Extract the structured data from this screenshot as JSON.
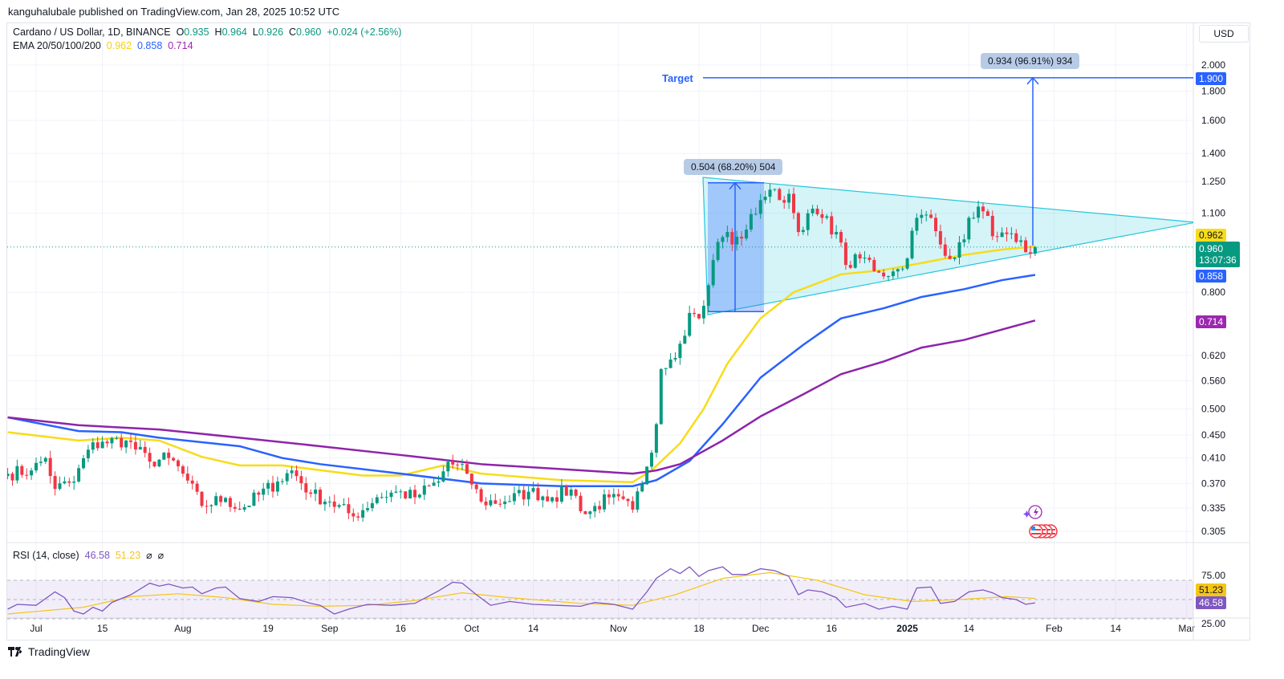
{
  "header": {
    "publisher": "kanguhalubale published on TradingView.com, Jan 28, 2025 10:52 UTC",
    "symbol": "Cardano / US Dollar, 1D, BINANCE",
    "o_label": "O",
    "o": "0.935",
    "h_label": "H",
    "h": "0.964",
    "l_label": "L",
    "l": "0.926",
    "c_label": "C",
    "c": "0.960",
    "change": "+0.024 (+2.56%)",
    "ema_label": "EMA 20/50/100/200",
    "ema20": "0.962",
    "ema50": "0.858",
    "ema200": "0.714",
    "currency": "USD"
  },
  "rsi_legend": {
    "label": "RSI (14, close)",
    "value": "46.58",
    "ma": "51.23",
    "icon1": "⌀",
    "icon2": "⌀"
  },
  "annotations": {
    "target_label": "Target",
    "target_price": "1.900",
    "target_measure": "0.934 (96.91%) 934",
    "flagpole_measure": "0.504 (68.20%) 504",
    "current_price": "0.960",
    "countdown": "13:07:36"
  },
  "footer": {
    "brand": "TradingView"
  },
  "colors": {
    "up": "#089981",
    "down": "#f23645",
    "ema20": "#f7dc1a",
    "ema50": "#2962ff",
    "ema200": "#8e24aa",
    "rsi": "#7e57c2",
    "rsi_ma": "#f5c518",
    "triangle": "#26c6da",
    "measure": "#2962ff"
  },
  "chart_data": {
    "type": "candlestick",
    "title": "Cardano / US Dollar, 1D, BINANCE",
    "x_unit": "days since 2024-07-01",
    "y_scale": "log",
    "ylim": [
      0.29,
      2.1
    ],
    "y_ticks": [
      "2.000",
      "1.800",
      "1.600",
      "1.400",
      "1.250",
      "1.100",
      "0.800",
      "0.620",
      "0.560",
      "0.500",
      "0.450",
      "0.410",
      "0.370",
      "0.335",
      "0.305"
    ],
    "x_ticks": [
      {
        "day": 0,
        "label": "Jul"
      },
      {
        "day": 14,
        "label": "15"
      },
      {
        "day": 31,
        "label": "Aug"
      },
      {
        "day": 49,
        "label": "19"
      },
      {
        "day": 62,
        "label": "Sep"
      },
      {
        "day": 77,
        "label": "16"
      },
      {
        "day": 92,
        "label": "Oct"
      },
      {
        "day": 105,
        "label": "14"
      },
      {
        "day": 123,
        "label": "Nov"
      },
      {
        "day": 140,
        "label": "18"
      },
      {
        "day": 153,
        "label": "Dec"
      },
      {
        "day": 168,
        "label": "16"
      },
      {
        "day": 184,
        "label": "2025",
        "bold": true
      },
      {
        "day": 197,
        "label": "14"
      },
      {
        "day": 215,
        "label": "Feb"
      },
      {
        "day": 228,
        "label": "14"
      },
      {
        "day": 243,
        "label": "Mar"
      }
    ],
    "close_keypoints": [
      [
        -6,
        0.385
      ],
      [
        -1,
        0.39
      ],
      [
        2,
        0.41
      ],
      [
        4,
        0.362
      ],
      [
        8,
        0.373
      ],
      [
        11,
        0.424
      ],
      [
        14,
        0.438
      ],
      [
        19,
        0.44
      ],
      [
        24,
        0.404
      ],
      [
        28,
        0.41
      ],
      [
        31,
        0.385
      ],
      [
        35,
        0.338
      ],
      [
        40,
        0.349
      ],
      [
        43,
        0.333
      ],
      [
        51,
        0.373
      ],
      [
        54,
        0.39
      ],
      [
        58,
        0.355
      ],
      [
        62,
        0.344
      ],
      [
        67,
        0.324
      ],
      [
        72,
        0.35
      ],
      [
        76,
        0.358
      ],
      [
        80,
        0.35
      ],
      [
        85,
        0.373
      ],
      [
        87,
        0.404
      ],
      [
        91,
        0.385
      ],
      [
        94,
        0.344
      ],
      [
        99,
        0.344
      ],
      [
        104,
        0.358
      ],
      [
        109,
        0.35
      ],
      [
        113,
        0.361
      ],
      [
        116,
        0.327
      ],
      [
        121,
        0.35
      ],
      [
        126,
        0.333
      ],
      [
        129,
        0.396
      ],
      [
        131,
        0.47
      ],
      [
        132,
        0.587
      ],
      [
        134,
        0.61
      ],
      [
        136,
        0.65
      ],
      [
        138,
        0.736
      ],
      [
        140,
        0.72
      ],
      [
        142,
        0.823
      ],
      [
        144,
        0.98
      ],
      [
        146,
        1.02
      ],
      [
        147,
        0.97
      ],
      [
        150,
        1.03
      ],
      [
        153,
        1.16
      ],
      [
        155,
        1.21
      ],
      [
        157,
        1.16
      ],
      [
        159,
        1.19
      ],
      [
        161,
        1.02
      ],
      [
        163,
        1.1
      ],
      [
        166,
        1.08
      ],
      [
        169,
        1.02
      ],
      [
        171,
        0.893
      ],
      [
        175,
        0.92
      ],
      [
        178,
        0.866
      ],
      [
        181,
        0.87
      ],
      [
        183,
        0.88
      ],
      [
        186,
        1.08
      ],
      [
        189,
        1.08
      ],
      [
        191,
        0.97
      ],
      [
        194,
        0.92
      ],
      [
        196,
        0.99
      ],
      [
        197,
        1.08
      ],
      [
        199,
        1.13
      ],
      [
        203,
        1.0
      ],
      [
        207,
        0.98
      ],
      [
        209,
        0.94
      ],
      [
        210,
        0.935
      ]
    ],
    "last_candle": {
      "day": 211,
      "open": 0.935,
      "high": 0.964,
      "low": 0.926,
      "close": 0.96
    },
    "series": [
      {
        "name": "EMA 20",
        "points": [
          [
            -6,
            0.455
          ],
          [
            9,
            0.44
          ],
          [
            18,
            0.445
          ],
          [
            26,
            0.44
          ],
          [
            35,
            0.412
          ],
          [
            43,
            0.398
          ],
          [
            52,
            0.398
          ],
          [
            69,
            0.382
          ],
          [
            77,
            0.382
          ],
          [
            86,
            0.398
          ],
          [
            91,
            0.39
          ],
          [
            94,
            0.385
          ],
          [
            111,
            0.375
          ],
          [
            126,
            0.372
          ],
          [
            130,
            0.39
          ],
          [
            136,
            0.435
          ],
          [
            141,
            0.5
          ],
          [
            146,
            0.6
          ],
          [
            153,
            0.72
          ],
          [
            160,
            0.8
          ],
          [
            170,
            0.86
          ],
          [
            179,
            0.875
          ],
          [
            187,
            0.9
          ],
          [
            196,
            0.93
          ],
          [
            204,
            0.95
          ],
          [
            211,
            0.962
          ]
        ]
      },
      {
        "name": "EMA 50",
        "points": [
          [
            -6,
            0.483
          ],
          [
            9,
            0.457
          ],
          [
            18,
            0.455
          ],
          [
            26,
            0.445
          ],
          [
            43,
            0.43
          ],
          [
            52,
            0.41
          ],
          [
            60,
            0.4
          ],
          [
            77,
            0.385
          ],
          [
            94,
            0.37
          ],
          [
            111,
            0.366
          ],
          [
            126,
            0.366
          ],
          [
            131,
            0.375
          ],
          [
            138,
            0.405
          ],
          [
            145,
            0.47
          ],
          [
            153,
            0.567
          ],
          [
            162,
            0.647
          ],
          [
            170,
            0.72
          ],
          [
            179,
            0.75
          ],
          [
            187,
            0.785
          ],
          [
            196,
            0.81
          ],
          [
            204,
            0.84
          ],
          [
            211,
            0.858
          ]
        ]
      },
      {
        "name": "EMA 200",
        "points": [
          [
            -6,
            0.483
          ],
          [
            9,
            0.468
          ],
          [
            26,
            0.46
          ],
          [
            43,
            0.445
          ],
          [
            60,
            0.43
          ],
          [
            77,
            0.415
          ],
          [
            94,
            0.4
          ],
          [
            111,
            0.392
          ],
          [
            126,
            0.385
          ],
          [
            131,
            0.39
          ],
          [
            136,
            0.4
          ],
          [
            145,
            0.44
          ],
          [
            153,
            0.485
          ],
          [
            162,
            0.53
          ],
          [
            170,
            0.575
          ],
          [
            179,
            0.605
          ],
          [
            187,
            0.64
          ],
          [
            196,
            0.66
          ],
          [
            211,
            0.714
          ]
        ]
      }
    ],
    "rsi": {
      "period": 14,
      "ylim": [
        20,
        80
      ],
      "levels": [
        70,
        50,
        30
      ],
      "ticks": [
        "75.00",
        "25.00"
      ],
      "values": [
        [
          -6,
          40
        ],
        [
          -4,
          45
        ],
        [
          0,
          44
        ],
        [
          4,
          58
        ],
        [
          6,
          52
        ],
        [
          8,
          38
        ],
        [
          10,
          35
        ],
        [
          12,
          42
        ],
        [
          14,
          38
        ],
        [
          16,
          47
        ],
        [
          20,
          55
        ],
        [
          24,
          67
        ],
        [
          26,
          64
        ],
        [
          28,
          66
        ],
        [
          31,
          62
        ],
        [
          33,
          63
        ],
        [
          35,
          56
        ],
        [
          38,
          62
        ],
        [
          40,
          63
        ],
        [
          43,
          51
        ],
        [
          47,
          48
        ],
        [
          50,
          53
        ],
        [
          54,
          52
        ],
        [
          58,
          46
        ],
        [
          60,
          44
        ],
        [
          63,
          35
        ],
        [
          66,
          40
        ],
        [
          70,
          45
        ],
        [
          75,
          44
        ],
        [
          80,
          46
        ],
        [
          85,
          59
        ],
        [
          88,
          68
        ],
        [
          90,
          67
        ],
        [
          93,
          55
        ],
        [
          96,
          44
        ],
        [
          100,
          48
        ],
        [
          105,
          45
        ],
        [
          110,
          44
        ],
        [
          115,
          43
        ],
        [
          118,
          47
        ],
        [
          122,
          45
        ],
        [
          126,
          40
        ],
        [
          129,
          58
        ],
        [
          131,
          72
        ],
        [
          134,
          82
        ],
        [
          136,
          77
        ],
        [
          138,
          84
        ],
        [
          140,
          74
        ],
        [
          142,
          80
        ],
        [
          145,
          84
        ],
        [
          147,
          76
        ],
        [
          150,
          76
        ],
        [
          153,
          82
        ],
        [
          156,
          80
        ],
        [
          159,
          74
        ],
        [
          161,
          55
        ],
        [
          163,
          60
        ],
        [
          166,
          58
        ],
        [
          169,
          52
        ],
        [
          171,
          42
        ],
        [
          175,
          46
        ],
        [
          178,
          40
        ],
        [
          181,
          43
        ],
        [
          184,
          40
        ],
        [
          186,
          62
        ],
        [
          189,
          63
        ],
        [
          191,
          46
        ],
        [
          194,
          48
        ],
        [
          197,
          58
        ],
        [
          200,
          60
        ],
        [
          202,
          57
        ],
        [
          204,
          52
        ],
        [
          207,
          50
        ],
        [
          209,
          45
        ],
        [
          211,
          46.58
        ]
      ],
      "ma": [
        [
          -6,
          35
        ],
        [
          10,
          42
        ],
        [
          20,
          53
        ],
        [
          30,
          56
        ],
        [
          40,
          52
        ],
        [
          50,
          45
        ],
        [
          60,
          43
        ],
        [
          70,
          44
        ],
        [
          80,
          49
        ],
        [
          90,
          57
        ],
        [
          100,
          52
        ],
        [
          115,
          46
        ],
        [
          126,
          44
        ],
        [
          135,
          55
        ],
        [
          145,
          72
        ],
        [
          155,
          78
        ],
        [
          165,
          70
        ],
        [
          175,
          55
        ],
        [
          185,
          48
        ],
        [
          195,
          50
        ],
        [
          205,
          53
        ],
        [
          211,
          51.23
        ]
      ]
    },
    "pattern": {
      "type": "symmetrical triangle",
      "flagpole_from": 0.74,
      "flagpole_to": 1.244,
      "target": 1.9,
      "breakout_base": 0.966
    }
  }
}
